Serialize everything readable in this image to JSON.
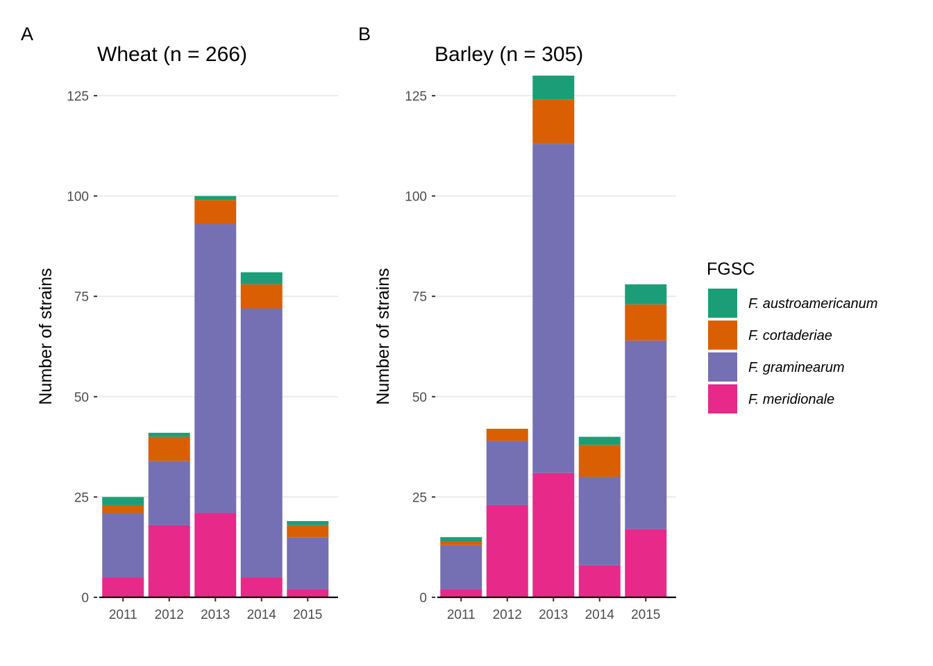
{
  "legend": {
    "title": "FGSC",
    "items": [
      {
        "name": "F. austroamericanum",
        "color": "#1b9e77"
      },
      {
        "name": "F. cortaderiae",
        "color": "#d95f02"
      },
      {
        "name": "F. graminearum",
        "color": "#7570b3"
      },
      {
        "name": "F. meridionale",
        "color": "#e7298a"
      }
    ]
  },
  "chart_data": [
    {
      "type": "bar",
      "stacked": true,
      "panel_letter": "A",
      "title": "Wheat (n = 266)",
      "xlabel": "",
      "ylabel": "Number of strains",
      "ylim": [
        0,
        130
      ],
      "yticks": [
        0,
        25,
        50,
        75,
        100,
        125
      ],
      "grid": "horizontal",
      "categories": [
        "2011",
        "2012",
        "2013",
        "2014",
        "2015"
      ],
      "series": [
        {
          "name": "F. meridionale",
          "color": "#e7298a",
          "values": [
            5,
            18,
            21,
            5,
            2
          ]
        },
        {
          "name": "F. graminearum",
          "color": "#7570b3",
          "values": [
            16,
            16,
            72,
            67,
            13
          ]
        },
        {
          "name": "F. cortaderiae",
          "color": "#d95f02",
          "values": [
            2,
            6,
            6,
            6,
            3
          ]
        },
        {
          "name": "F. austroamericanum",
          "color": "#1b9e77",
          "values": [
            2,
            1,
            1,
            3,
            1
          ]
        }
      ]
    },
    {
      "type": "bar",
      "stacked": true,
      "panel_letter": "B",
      "title": "Barley (n = 305)",
      "xlabel": "",
      "ylabel": "Number of strains",
      "ylim": [
        0,
        130
      ],
      "yticks": [
        0,
        25,
        50,
        75,
        100,
        125
      ],
      "grid": "horizontal",
      "categories": [
        "2011",
        "2012",
        "2013",
        "2014",
        "2015"
      ],
      "series": [
        {
          "name": "F. meridionale",
          "color": "#e7298a",
          "values": [
            2,
            23,
            31,
            8,
            17
          ]
        },
        {
          "name": "F. graminearum",
          "color": "#7570b3",
          "values": [
            11,
            16,
            82,
            22,
            47
          ]
        },
        {
          "name": "F. cortaderiae",
          "color": "#d95f02",
          "values": [
            1,
            3,
            11,
            8,
            9
          ]
        },
        {
          "name": "F. austroamericanum",
          "color": "#1b9e77",
          "values": [
            1,
            0,
            6,
            2,
            5
          ]
        }
      ]
    }
  ]
}
